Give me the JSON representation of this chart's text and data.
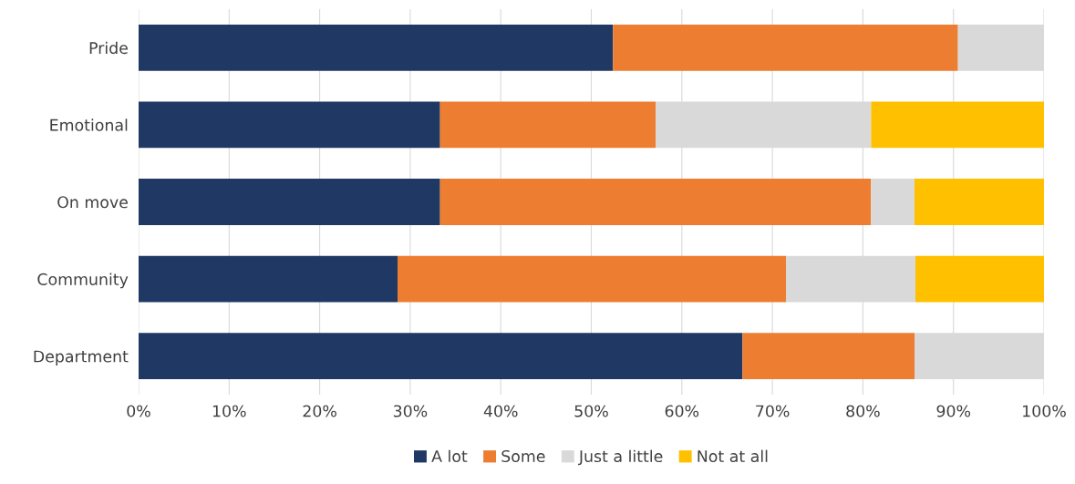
{
  "chart_data": {
    "type": "bar",
    "orientation": "horizontal",
    "stacked": true,
    "categories": [
      "Pride",
      "Emotional",
      "On move",
      "Community",
      "Department"
    ],
    "series": [
      {
        "name": "A lot",
        "color": "#203864",
        "values": [
          52.4,
          33.3,
          33.3,
          28.6,
          66.7
        ]
      },
      {
        "name": "Some",
        "color": "#ed7d31",
        "values": [
          38.1,
          23.8,
          47.6,
          42.9,
          19.0
        ]
      },
      {
        "name": "Just a little",
        "color": "#d9d9d9",
        "values": [
          9.5,
          23.8,
          4.8,
          14.3,
          14.3
        ]
      },
      {
        "name": "Not at all",
        "color": "#ffc000",
        "values": [
          0,
          19.1,
          14.3,
          14.2,
          0
        ]
      }
    ],
    "xlim": [
      0,
      100
    ],
    "xticks": [
      {
        "value": 0,
        "label": "0%"
      },
      {
        "value": 10,
        "label": "10%"
      },
      {
        "value": 20,
        "label": "20%"
      },
      {
        "value": 30,
        "label": "30%"
      },
      {
        "value": 40,
        "label": "40%"
      },
      {
        "value": 50,
        "label": "50%"
      },
      {
        "value": 60,
        "label": "60%"
      },
      {
        "value": 70,
        "label": "70%"
      },
      {
        "value": 80,
        "label": "80%"
      },
      {
        "value": 90,
        "label": "90%"
      },
      {
        "value": 100,
        "label": "100%"
      }
    ],
    "grid": "x",
    "legend": "bottom"
  }
}
